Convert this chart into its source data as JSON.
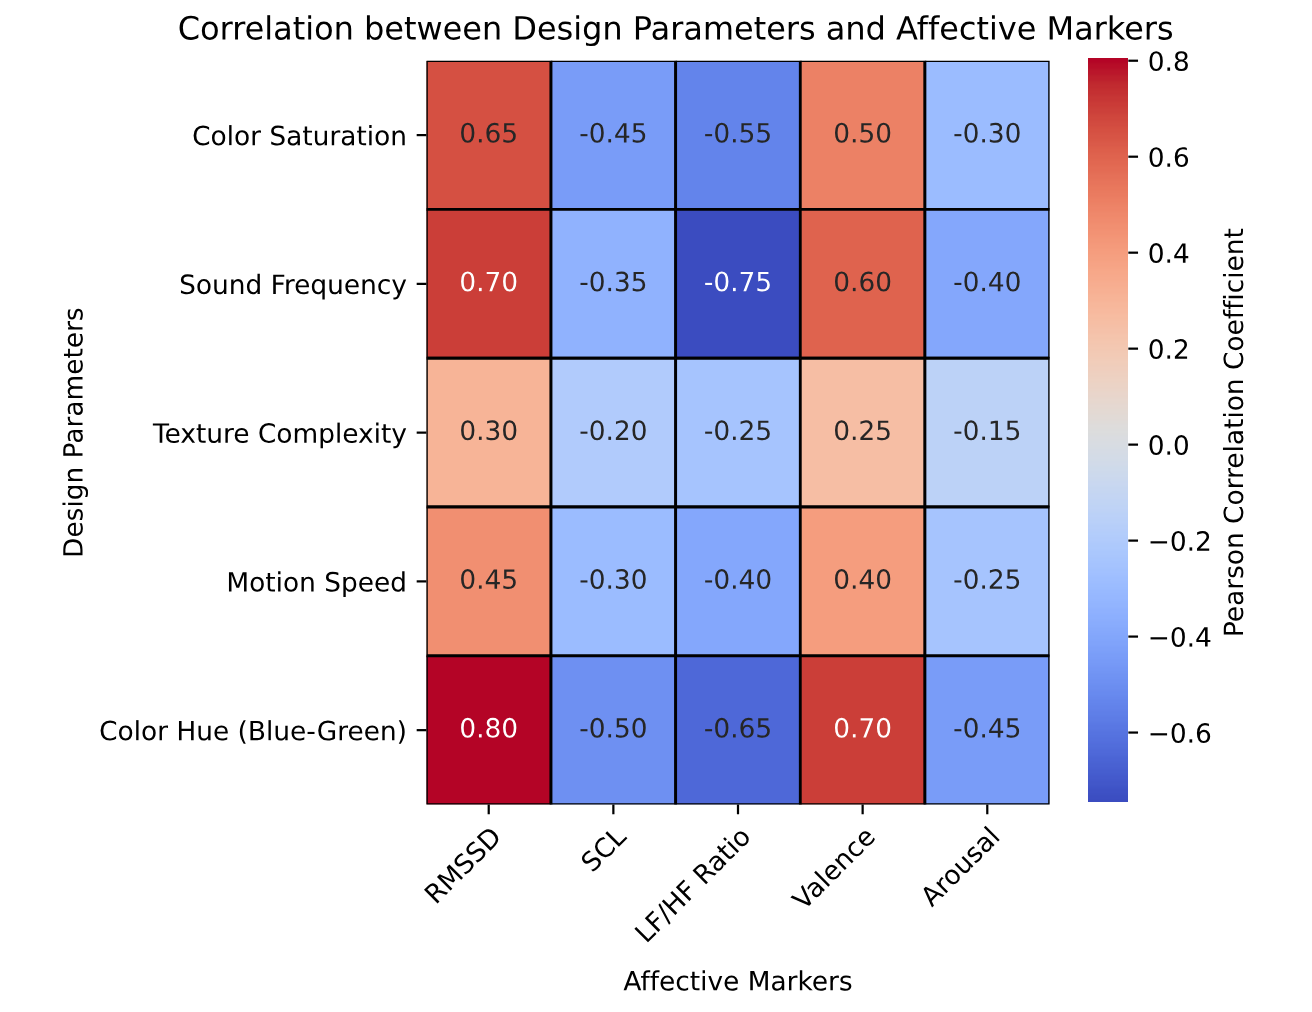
{
  "chart_data": {
    "type": "heatmap",
    "title": "Correlation between Design Parameters and Affective Markers",
    "xlabel": "Affective Markers",
    "ylabel": "Design Parameters",
    "clabel": "Pearson Correlation Coefficient",
    "categories": [
      "RMSSD",
      "SCL",
      "LF/HF Ratio",
      "Valence",
      "Arousal"
    ],
    "y_categories": [
      "Color Saturation",
      "Sound Frequency",
      "Texture Complexity",
      "Motion Speed",
      "Color Hue (Blue-Green)"
    ],
    "cells": [
      [
        0.65,
        -0.45,
        -0.55,
        0.5,
        -0.3
      ],
      [
        0.7,
        -0.35,
        -0.75,
        0.6,
        -0.4
      ],
      [
        0.3,
        -0.2,
        -0.25,
        0.25,
        -0.15
      ],
      [
        0.45,
        -0.3,
        -0.4,
        0.4,
        -0.25
      ],
      [
        0.8,
        -0.5,
        -0.65,
        0.7,
        -0.45
      ]
    ],
    "cell_labels": [
      [
        "0.65",
        "-0.45",
        "-0.55",
        "0.50",
        "-0.30"
      ],
      [
        "0.70",
        "-0.35",
        "-0.75",
        "0.60",
        "-0.40"
      ],
      [
        "0.30",
        "-0.20",
        "-0.25",
        "0.25",
        "-0.15"
      ],
      [
        "0.45",
        "-0.30",
        "-0.40",
        "0.40",
        "-0.25"
      ],
      [
        "0.80",
        "-0.50",
        "-0.65",
        "0.70",
        "-0.45"
      ]
    ],
    "clim": [
      -0.75,
      0.8
    ],
    "cticks": [
      {
        "value": -0.6,
        "label": "−0.6"
      },
      {
        "value": -0.4,
        "label": "−0.4"
      },
      {
        "value": -0.2,
        "label": "−0.2"
      },
      {
        "value": 0.0,
        "label": "0.0"
      },
      {
        "value": 0.2,
        "label": "0.2"
      },
      {
        "value": 0.4,
        "label": "0.4"
      },
      {
        "value": 0.6,
        "label": "0.6"
      },
      {
        "value": 0.8,
        "label": "0.8"
      }
    ]
  }
}
